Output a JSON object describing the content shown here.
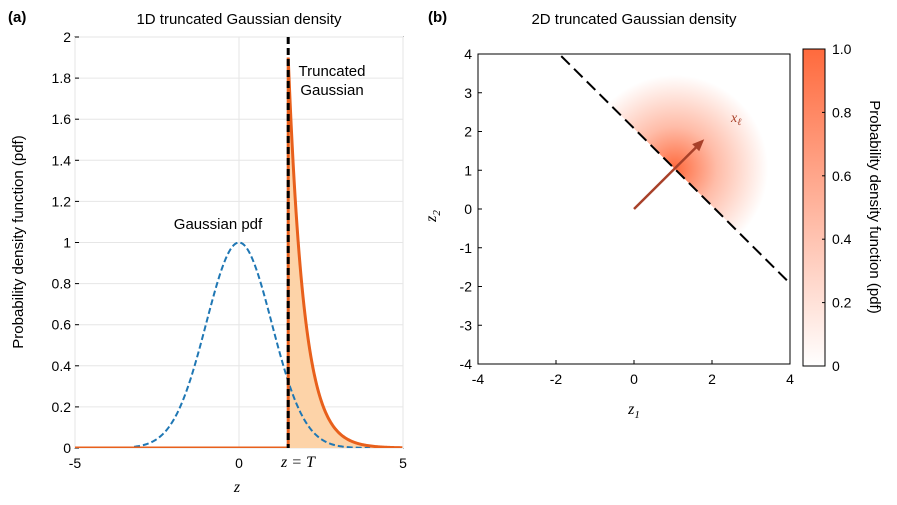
{
  "chart_data": [
    {
      "type": "line",
      "panel_label": "(a)",
      "title": "1D truncated Gaussian density",
      "xlabel": "z",
      "ylabel": "Probability density function (pdf)",
      "xlim": [
        -5,
        5
      ],
      "ylim": [
        0,
        2
      ],
      "xticks": [
        -5,
        0,
        5
      ],
      "yticks": [
        0,
        0.2,
        0.4,
        0.6,
        0.8,
        1,
        1.2,
        1.4,
        1.6,
        1.8,
        2
      ],
      "ytick_labels": [
        "0",
        "0.2",
        "0.4",
        "0.6",
        "0.8",
        "1",
        "1.2",
        "1.4",
        "1.6",
        "1.8",
        "2"
      ],
      "xtick_labels": [
        "-5",
        "0",
        "5"
      ],
      "threshold": {
        "x": 1.5,
        "label": "z = T"
      },
      "series": [
        {
          "name": "Gaussian pdf",
          "style": "dashed",
          "color": "#1f77b4",
          "mean": 0,
          "sigma": 1,
          "peak": 1.0
        },
        {
          "name": "Truncated Gaussian",
          "style": "solid",
          "color": "#e8601c",
          "fill": "#fdd3a8",
          "truncated_at": 1.5,
          "peak": 1.9
        }
      ],
      "annotations": {
        "gaussian": "Gaussian pdf",
        "truncated_line1": "Truncated",
        "truncated_line2": "Gaussian"
      }
    },
    {
      "type": "heatmap",
      "panel_label": "(b)",
      "title": "2D truncated Gaussian density",
      "xlabel": "z",
      "xlabel_sub": "1",
      "ylabel": "z",
      "ylabel_sub": "2",
      "xlim": [
        -4,
        4
      ],
      "ylim": [
        -4,
        4
      ],
      "xticks": [
        -4,
        -2,
        0,
        2,
        4
      ],
      "yticks": [
        -4,
        -3,
        -2,
        -1,
        0,
        1,
        2,
        3,
        4
      ],
      "xtick_labels": [
        "-4",
        "-2",
        "0",
        "2",
        "4"
      ],
      "ytick_labels": [
        "-4",
        "-3",
        "-2",
        "-1",
        "0",
        "1",
        "2",
        "3",
        "4"
      ],
      "boundary": {
        "style": "dashed",
        "color": "#000000",
        "normal": [
          1,
          1
        ],
        "offset": 2.08
      },
      "arrow": {
        "from": [
          0,
          0
        ],
        "to": [
          1.8,
          1.8
        ],
        "color": "#a8412a",
        "label": "x",
        "label_sub": "ℓ"
      },
      "colorbar": {
        "label": "Probability density function (pdf)",
        "range": [
          0,
          1.0
        ],
        "ticks": [
          0,
          0.2,
          0.4,
          0.6,
          0.8,
          1.0
        ],
        "tick_labels": [
          "0",
          "0.2",
          "0.4",
          "0.6",
          "0.8",
          "1.0"
        ],
        "color_low": "#ffffff",
        "color_high": "#ff6a3d"
      }
    }
  ]
}
